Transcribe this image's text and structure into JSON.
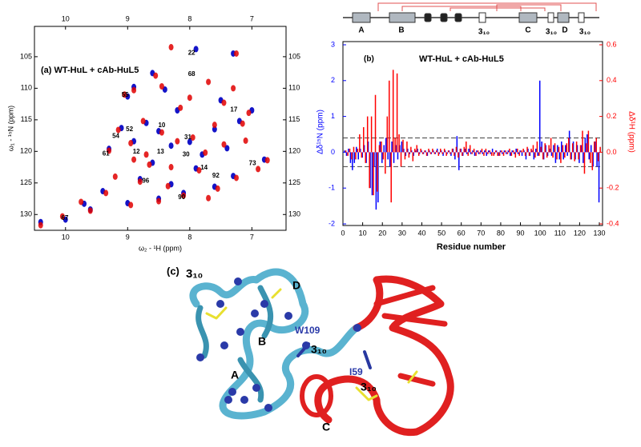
{
  "chart_data": [
    {
      "type": "scatter",
      "title": "(a) WT-HuL + cAb-HuL5",
      "x_label": "ω₂ - ¹H (ppm)",
      "y_label": "ω₁ - ¹⁵N (ppm)",
      "xlim": [
        10.5,
        6.45
      ],
      "ylim": [
        100.2,
        132.5
      ],
      "xticks": [
        10,
        9,
        8,
        7
      ],
      "yticks": [
        105,
        110,
        115,
        120,
        125,
        130
      ],
      "series": [
        {
          "color": "#1414c8",
          "x": [
            7.9,
            7.3,
            8.4,
            9.0,
            7.5,
            8.2,
            8.7,
            8.5,
            7.6,
            7.2,
            9.1,
            8.9,
            8.3,
            8.0,
            7.8,
            7.4,
            9.3,
            8.6,
            7.9,
            7.3,
            8.8,
            8.3,
            7.6,
            9.4,
            8.5,
            8.1,
            9.0,
            9.7,
            10.0,
            10.4,
            9.6,
            6.8,
            7.0,
            8.6,
            8.9
          ],
          "values": [
            103.8,
            104.5,
            110.2,
            111.3,
            111.9,
            113.5,
            115.5,
            116.8,
            116.5,
            115.2,
            116.3,
            118.4,
            119.1,
            118.5,
            120.5,
            119.5,
            119.6,
            121.8,
            122.7,
            123.9,
            124.4,
            125.2,
            125.6,
            126.3,
            127.5,
            126.6,
            128.2,
            128.3,
            130.8,
            131.2,
            129.2,
            121.3,
            113.5,
            107.6,
            109.8
          ]
        },
        {
          "color": "#e00000",
          "x": [
            8.3,
            7.25,
            8.45,
            9.05,
            7.45,
            8.15,
            8.75,
            8.45,
            7.6,
            7.15,
            9.15,
            8.95,
            8.2,
            7.95,
            7.75,
            7.45,
            9.3,
            8.65,
            7.85,
            7.25,
            8.8,
            8.35,
            7.55,
            9.35,
            8.5,
            8.1,
            8.95,
            9.75,
            10.05,
            10.4,
            9.6,
            6.75,
            7.05,
            8.55,
            8.9,
            8.0,
            7.7,
            7.3,
            8.7,
            7.1,
            6.9,
            8.3,
            8.9,
            9.2,
            7.7
          ],
          "values": [
            103.5,
            104.5,
            109.7,
            111.0,
            112.3,
            113.1,
            115.2,
            117.0,
            115.8,
            115.6,
            116.6,
            118.7,
            118.4,
            117.8,
            120.2,
            118.9,
            119.9,
            122.1,
            123.0,
            124.2,
            124.8,
            125.5,
            125.9,
            126.6,
            127.9,
            127.0,
            128.5,
            128.0,
            130.3,
            131.7,
            129.4,
            121.4,
            113.9,
            108.0,
            110.3,
            111.5,
            109.0,
            110.0,
            120.5,
            118.3,
            122.8,
            122.5,
            121.3,
            124.0,
            127.4
          ]
        }
      ],
      "annotations": [
        {
          "text": "22",
          "x": 7.97,
          "y": 104.4
        },
        {
          "text": "68",
          "x": 7.97,
          "y": 107.8
        },
        {
          "text": "55",
          "x": 9.04,
          "y": 111.1
        },
        {
          "text": "52",
          "x": 8.97,
          "y": 116.5
        },
        {
          "text": "54",
          "x": 9.19,
          "y": 117.6
        },
        {
          "text": "61",
          "x": 9.35,
          "y": 120.4
        },
        {
          "text": "12",
          "x": 8.86,
          "y": 120.1
        },
        {
          "text": "13",
          "x": 8.47,
          "y": 120.1
        },
        {
          "text": "10",
          "x": 8.45,
          "y": 115.9
        },
        {
          "text": "31",
          "x": 8.03,
          "y": 117.8
        },
        {
          "text": "30",
          "x": 8.06,
          "y": 120.5
        },
        {
          "text": "17",
          "x": 7.29,
          "y": 113.4
        },
        {
          "text": "14",
          "x": 7.77,
          "y": 122.6
        },
        {
          "text": "92",
          "x": 7.58,
          "y": 123.9
        },
        {
          "text": "73",
          "x": 6.99,
          "y": 121.9
        },
        {
          "text": "96",
          "x": 8.71,
          "y": 124.7
        },
        {
          "text": "90",
          "x": 8.13,
          "y": 127.3
        },
        {
          "text": "67",
          "x": 10.01,
          "y": 130.6
        }
      ]
    },
    {
      "type": "bar",
      "panel_label": "(b)",
      "title": "WT-HuL + cAb-HuL5",
      "x_label": "Residue number",
      "y_label": "Δδ¹⁵N (ppm)",
      "y2_label": "Δδ¹H (ppm)",
      "xlim": [
        0,
        130
      ],
      "xticks": [
        0,
        10,
        20,
        30,
        40,
        50,
        60,
        70,
        80,
        90,
        100,
        110,
        120,
        130
      ],
      "ylim": [
        -2,
        3
      ],
      "yticks": [
        -2,
        -1,
        0,
        1,
        2,
        3
      ],
      "y2lim": [
        -0.4,
        0.6
      ],
      "y2ticks": [
        -0.4,
        -0.2,
        {
          "value": 0,
          "label": "0.0"
        },
        0.2,
        0.4,
        0.6
      ],
      "reference_lines": [
        0.4,
        -0.4
      ],
      "x": [
        1,
        2,
        3,
        4,
        5,
        6,
        7,
        8,
        9,
        10,
        11,
        12,
        13,
        14,
        15,
        16,
        17,
        18,
        19,
        20,
        21,
        22,
        23,
        24,
        25,
        26,
        27,
        28,
        29,
        30,
        31,
        32,
        33,
        34,
        35,
        36,
        37,
        38,
        39,
        40,
        41,
        42,
        43,
        44,
        45,
        46,
        47,
        48,
        49,
        50,
        51,
        52,
        53,
        54,
        55,
        56,
        57,
        58,
        59,
        60,
        61,
        62,
        63,
        64,
        65,
        66,
        67,
        68,
        69,
        70,
        71,
        72,
        73,
        74,
        75,
        76,
        77,
        78,
        79,
        80,
        81,
        82,
        83,
        84,
        85,
        86,
        87,
        88,
        89,
        90,
        91,
        92,
        93,
        94,
        95,
        96,
        97,
        98,
        99,
        100,
        101,
        102,
        103,
        104,
        105,
        106,
        107,
        108,
        109,
        110,
        111,
        112,
        113,
        114,
        115,
        116,
        117,
        118,
        119,
        120,
        121,
        122,
        123,
        124,
        125,
        126,
        127,
        128,
        129,
        130
      ],
      "series": [
        {
          "color": "#0000ff",
          "values": [
            0.05,
            -0.1,
            0.1,
            -0.3,
            -0.5,
            -0.3,
            0.15,
            -0.2,
            0.1,
            -0.15,
            0.2,
            -0.3,
            0.3,
            -1.0,
            -1.2,
            -0.4,
            -1.6,
            -1.4,
            0.3,
            -0.3,
            0.2,
            0.4,
            -0.2,
            -0.4,
            0.3,
            -0.3,
            0.2,
            -0.2,
            0.2,
            0.3,
            0.1,
            -0.1,
            0.1,
            -0.05,
            0.05,
            -0.1,
            0.05,
            0.1,
            -0.05,
            0.05,
            -0.05,
            0.05,
            -0.1,
            0.05,
            -0.05,
            0.05,
            -0.05,
            0.1,
            -0.05,
            0.05,
            -0.1,
            0.05,
            -0.05,
            0.05,
            -0.1,
            0.1,
            -0.2,
            0.45,
            -0.5,
            0.1,
            -0.1,
            0.1,
            -0.05,
            0.1,
            -0.05,
            0.05,
            -0.1,
            0.05,
            -0.05,
            0.05,
            -0.05,
            0.05,
            -0.1,
            0.05,
            -0.05,
            0.1,
            -0.05,
            0.05,
            -0.1,
            0.05,
            -0.05,
            0.05,
            -0.05,
            0.05,
            -0.1,
            0.05,
            -0.05,
            0.1,
            -0.05,
            0.05,
            -0.1,
            0.05,
            -0.2,
            0.1,
            -0.1,
            0.05,
            -0.2,
            0.1,
            -0.1,
            2.0,
            0.3,
            -0.2,
            0.2,
            -0.1,
            0.1,
            -0.1,
            0.2,
            -0.3,
            0.2,
            -0.2,
            0.3,
            -0.2,
            0.2,
            -0.1,
            0.6,
            -0.2,
            0.3,
            -0.2,
            0.2,
            -0.3,
            0.2,
            -0.3,
            0.4,
            0.5,
            -0.2,
            0.2,
            -0.4,
            0.3,
            -0.4,
            -1.4
          ]
        },
        {
          "color": "#ff0000",
          "axis": "y2",
          "values": [
            0.01,
            -0.02,
            0.02,
            -0.04,
            0.03,
            -0.04,
            0.02,
            0.1,
            -0.03,
            0.14,
            -0.06,
            0.2,
            -0.2,
            0.2,
            -0.24,
            0.32,
            -0.22,
            0.04,
            0.06,
            -0.04,
            -0.12,
            0.2,
            0.4,
            -0.28,
            0.46,
            0.08,
            0.44,
            0.1,
            -0.08,
            0.07,
            -0.04,
            0.06,
            -0.03,
            0.03,
            -0.05,
            0.02,
            0.04,
            -0.02,
            0.02,
            -0.01,
            0.01,
            -0.02,
            0.02,
            -0.01,
            0.02,
            -0.01,
            0.01,
            -0.02,
            0.02,
            -0.01,
            0.02,
            -0.02,
            0.01,
            -0.01,
            0.02,
            -0.02,
            0.03,
            -0.03,
            0.02,
            -0.02,
            0.03,
            0.06,
            -0.02,
            0.04,
            -0.01,
            0.02,
            -0.02,
            0.01,
            -0.01,
            0.02,
            -0.02,
            0.02,
            -0.01,
            0.01,
            -0.02,
            -0.02,
            0.01,
            -0.02,
            -0.02,
            0.01,
            -0.02,
            0.01,
            -0.01,
            0.02,
            -0.02,
            0.01,
            -0.03,
            0.02,
            -0.02,
            0.01,
            0.02,
            -0.02,
            0.03,
            -0.02,
            0.02,
            0.04,
            -0.03,
            0.06,
            -0.02,
            0.03,
            -0.04,
            0.05,
            -0.03,
            0.04,
            0.08,
            -0.03,
            0.05,
            -0.04,
            0.03,
            -0.06,
            0.04,
            -0.03,
            0.05,
            0.08,
            -0.04,
            0.05,
            -0.05,
            0.06,
            -0.04,
            0.04,
            0.12,
            -0.12,
            0.05,
            0.12,
            -0.06,
            -0.1,
            0.06,
            0.08,
            -0.05,
            0.03
          ]
        }
      ]
    }
  ],
  "topology": {
    "labels": [
      "A",
      "B",
      "3₁₀",
      "C",
      "3₁₀",
      "D",
      "3₁₀"
    ]
  },
  "structure": {
    "labels": [
      "(c)",
      "3₁₀",
      "D",
      "B",
      "A",
      "W109",
      "3₁₀",
      "I59",
      "3₁₀",
      "C"
    ]
  }
}
